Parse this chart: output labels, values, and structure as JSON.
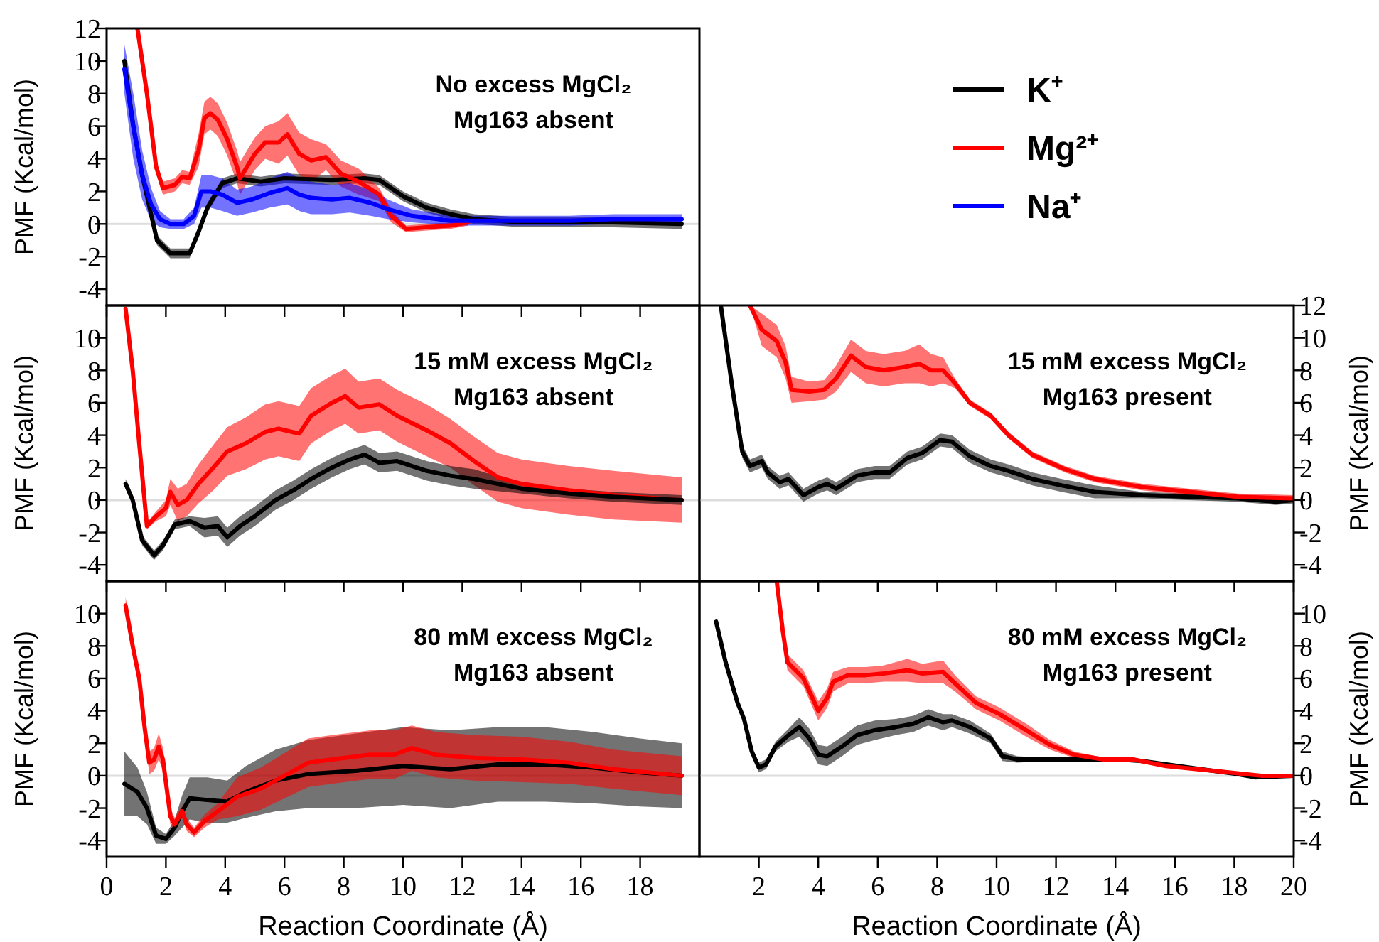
{
  "chart_data": [
    {
      "type": "line",
      "title": "No excess MgCl₂",
      "subtitle": "Mg163 absent",
      "ylabel": "PMF (Kcal/mol)",
      "xlim": [
        0,
        20
      ],
      "xticks": [
        0,
        2,
        4,
        6,
        8,
        10,
        12,
        14,
        16,
        18
      ],
      "ylim": [
        -5,
        12
      ],
      "yticks": [
        -4,
        -2,
        0,
        2,
        4,
        6,
        8,
        10,
        12
      ],
      "tick_labels": "y",
      "legend": "right",
      "ref_lines": [
        {
          "axis": "y",
          "value": 0,
          "color": "#dddddd"
        }
      ],
      "series": [
        {
          "name": "K⁺",
          "color": "#000000",
          "x": [
            0.6,
            0.9,
            1.2,
            1.7,
            2.15,
            2.8,
            3.1,
            3.4,
            3.9,
            4.4,
            5.2,
            6.0,
            7.6,
            8.7,
            9.2,
            10,
            10.8,
            11.6,
            12.4,
            14,
            15.6,
            17.1,
            19.4
          ],
          "values": [
            10,
            6,
            3,
            -1,
            -1.8,
            -1.8,
            -0.5,
            1,
            2.5,
            2.8,
            2.6,
            2.8,
            2.7,
            2.8,
            2.7,
            1.7,
            1.0,
            0.6,
            0.3,
            0.1,
            0.1,
            0.1,
            0
          ],
          "lower": [
            9.7,
            5.7,
            2.7,
            -1.3,
            -2.1,
            -2.1,
            -0.8,
            0.7,
            2.2,
            2.5,
            2.3,
            2.5,
            2.4,
            2.5,
            2.4,
            1.4,
            0.7,
            0.3,
            0,
            -0.2,
            -0.2,
            -0.2,
            -0.3
          ],
          "upper": [
            10.3,
            6.3,
            3.3,
            -0.7,
            -1.5,
            -1.5,
            -0.2,
            1.3,
            2.8,
            3.1,
            2.9,
            3.1,
            3.0,
            3.1,
            3.0,
            2.0,
            1.3,
            0.9,
            0.6,
            0.4,
            0.4,
            0.4,
            0.3
          ]
        },
        {
          "name": "Mg²⁺",
          "color": "#ff0000",
          "x": [
            1.04,
            1.36,
            1.67,
            1.9,
            2.3,
            2.55,
            2.8,
            3.1,
            3.3,
            3.5,
            3.75,
            4.07,
            4.4,
            4.5,
            5.0,
            5.35,
            5.8,
            6.1,
            6.5,
            6.9,
            7.4,
            7.9,
            8.5,
            9.2,
            9.6,
            10.1,
            10.8,
            11.6,
            12.2
          ],
          "values": [
            12,
            8,
            3.5,
            2.2,
            2.4,
            2.9,
            2.8,
            4.5,
            6.5,
            6.8,
            6.4,
            5.2,
            3.5,
            2.8,
            4.3,
            5.0,
            5.0,
            5.5,
            4.3,
            3.9,
            4.1,
            3.1,
            2.6,
            1.8,
            0.5,
            -0.3,
            -0.2,
            -0.1,
            0.1
          ],
          "lower": [
            11.6,
            7.6,
            3.1,
            1.8,
            2.0,
            2.5,
            2.4,
            3.5,
            5.5,
            5.8,
            5.4,
            4.2,
            2.5,
            1.8,
            3.3,
            4.0,
            3.7,
            4.2,
            3.0,
            2.6,
            3.3,
            2.3,
            1.8,
            1.4,
            0.1,
            -0.5,
            -0.4,
            -0.3,
            -0.1
          ],
          "upper": [
            12,
            8.4,
            3.9,
            2.6,
            2.8,
            3.3,
            3.2,
            5.5,
            7.5,
            7.8,
            7.4,
            6.2,
            4.5,
            3.8,
            5.3,
            6.0,
            6.3,
            6.8,
            5.6,
            5.2,
            4.9,
            3.9,
            3.4,
            2.2,
            0.9,
            -0.1,
            0,
            0.1,
            0.3
          ]
        },
        {
          "name": "Na⁺",
          "color": "#0000ff",
          "x": [
            0.6,
            0.9,
            1.2,
            1.5,
            1.8,
            2.15,
            2.6,
            2.95,
            3.2,
            3.5,
            3.9,
            4.4,
            4.9,
            5.5,
            6.1,
            6.5,
            6.9,
            7.6,
            8.2,
            8.9,
            9.5,
            10.3,
            11.6,
            13.2,
            15.6,
            17.1,
            19.4
          ],
          "values": [
            9.5,
            6,
            3,
            1.2,
            0.3,
            0,
            0,
            0.5,
            2.0,
            2.0,
            1.8,
            1.3,
            1.5,
            1.9,
            2.2,
            1.8,
            1.6,
            1.5,
            1.6,
            1.3,
            0.9,
            0.5,
            0.2,
            0.2,
            0.2,
            0.3,
            0.3
          ],
          "lower": [
            8,
            4,
            1.5,
            0.2,
            -0.2,
            -0.3,
            -0.3,
            0,
            1,
            1,
            0.8,
            0.5,
            0.7,
            1,
            1.2,
            0.8,
            0.6,
            0.6,
            0.7,
            0.5,
            0.3,
            0.1,
            -0.1,
            -0.1,
            -0.1,
            0,
            0
          ],
          "upper": [
            11,
            8,
            4.5,
            2.2,
            0.8,
            0.3,
            0.3,
            1,
            3,
            3,
            2.8,
            2.1,
            2.3,
            2.8,
            3.2,
            2.8,
            2.6,
            2.4,
            2.5,
            2.1,
            1.5,
            0.9,
            0.5,
            0.5,
            0.5,
            0.6,
            0.6
          ]
        }
      ]
    },
    {
      "type": "line",
      "title": "15 mM excess MgCl₂",
      "subtitle": "Mg163 absent",
      "ylabel": "PMF (Kcal/mol)",
      "xlim": [
        0,
        20
      ],
      "xticks": [
        0,
        2,
        4,
        6,
        8,
        10,
        12,
        14,
        16,
        18
      ],
      "ylim": [
        -5,
        12
      ],
      "yticks": [
        -4,
        -2,
        0,
        2,
        4,
        6,
        8,
        10
      ],
      "tick_labels": "y",
      "ref_lines": [
        {
          "axis": "y",
          "value": 0,
          "color": "#dddddd"
        }
      ],
      "series": [
        {
          "color": "#ff0000",
          "x": [
            0.64,
            0.88,
            1.1,
            1.36,
            1.67,
            2.0,
            2.15,
            2.4,
            2.7,
            3.1,
            3.6,
            4.07,
            4.7,
            5.35,
            5.8,
            6.5,
            6.9,
            7.6,
            8.05,
            8.5,
            9.2,
            9.8,
            10.8,
            11.6,
            12.4,
            13.2,
            14,
            15.6,
            17.1,
            19.4
          ],
          "values": [
            11.8,
            8,
            3.5,
            -1.6,
            -1.0,
            -0.5,
            0.5,
            -0.3,
            0,
            1.0,
            2.0,
            3.0,
            3.5,
            4.2,
            4.4,
            4.1,
            5.2,
            6.0,
            6.4,
            5.7,
            5.9,
            5.2,
            4.3,
            3.5,
            2.4,
            1.4,
            1.0,
            0.6,
            0.3,
            0
          ],
          "lower": [
            11.8,
            8,
            3.3,
            -1.8,
            -1.3,
            -1.0,
            -0.3,
            -1.3,
            -1,
            -0.2,
            0.6,
            1.5,
            1.9,
            2.5,
            2.7,
            2.4,
            3.5,
            4.3,
            4.7,
            4.1,
            4.3,
            3.6,
            2.7,
            2.0,
            0.9,
            -0.1,
            -0.5,
            -0.9,
            -1.2,
            -1.4
          ],
          "upper": [
            11.8,
            8,
            3.7,
            -1.4,
            -0.7,
            0,
            1.3,
            0.7,
            1,
            2.2,
            3.4,
            4.5,
            5.1,
            5.9,
            6.1,
            5.8,
            6.9,
            7.7,
            8.1,
            7.3,
            7.5,
            6.8,
            5.9,
            5.0,
            3.9,
            2.9,
            2.5,
            2.1,
            1.8,
            1.4
          ]
        },
        {
          "color": "#000000",
          "x": [
            0.64,
            0.88,
            1.2,
            1.6,
            1.9,
            2.3,
            2.8,
            3.3,
            3.75,
            4.07,
            4.5,
            5.0,
            5.7,
            6.3,
            6.9,
            7.6,
            8.2,
            8.7,
            9.2,
            9.8,
            10.8,
            11.6,
            12.4,
            14,
            15.6,
            17.1,
            19.4
          ],
          "values": [
            1.0,
            0,
            -2.5,
            -3.4,
            -2.8,
            -1.5,
            -1.3,
            -1.7,
            -1.6,
            -2.3,
            -1.6,
            -1.0,
            0,
            0.6,
            1.3,
            2.0,
            2.5,
            2.8,
            2.3,
            2.4,
            1.8,
            1.5,
            1.3,
            0.7,
            0.4,
            0.2,
            0
          ],
          "lower": [
            0.7,
            -0.3,
            -2.8,
            -3.7,
            -3.1,
            -1.8,
            -1.6,
            -2.3,
            -2.2,
            -2.9,
            -2.2,
            -1.6,
            -0.6,
            0,
            0.7,
            1.4,
            1.9,
            2.2,
            1.7,
            1.8,
            1.2,
            0.9,
            0.7,
            0.4,
            0.1,
            -0.1,
            -0.3
          ],
          "upper": [
            1.3,
            0.3,
            -2.2,
            -3.1,
            -2.5,
            -1.2,
            -1.0,
            -1.1,
            -1.0,
            -1.7,
            -1.0,
            -0.4,
            0.6,
            1.2,
            1.9,
            2.6,
            3.1,
            3.4,
            2.9,
            3.0,
            2.4,
            2.1,
            1.9,
            1.0,
            0.7,
            0.5,
            0.3
          ]
        }
      ]
    },
    {
      "type": "line",
      "title": "80 mM excess MgCl₂",
      "subtitle": "Mg163 absent",
      "xlabel": "Reaction Coordinate (Å)",
      "ylabel": "PMF (Kcal/mol)",
      "xlim": [
        0,
        20
      ],
      "xticks": [
        0,
        2,
        4,
        6,
        8,
        10,
        12,
        14,
        16,
        18
      ],
      "ylim": [
        -5,
        12
      ],
      "yticks": [
        -4,
        -2,
        0,
        2,
        4,
        6,
        8,
        10
      ],
      "ref_lines": [
        {
          "axis": "y",
          "value": 0,
          "color": "#dddddd"
        }
      ],
      "series": [
        {
          "color": "#000000",
          "x": [
            0.6,
            1.04,
            1.36,
            1.67,
            2.0,
            2.3,
            2.55,
            2.8,
            3.4,
            4.07,
            4.7,
            5.7,
            6.8,
            8.4,
            10,
            11.6,
            13.2,
            14.8,
            16.4,
            18,
            19.4
          ],
          "values": [
            -0.5,
            -1.0,
            -2.0,
            -3.7,
            -3.9,
            -3.2,
            -2.2,
            -1.4,
            -1.5,
            -1.6,
            -1.0,
            -0.3,
            0.1,
            0.3,
            0.6,
            0.4,
            0.7,
            0.7,
            0.5,
            0.2,
            0
          ],
          "lower": [
            -2.5,
            -2.5,
            -3.0,
            -4.2,
            -4.2,
            -3.7,
            -3.2,
            -2.7,
            -2.9,
            -2.9,
            -2.6,
            -2.2,
            -2.0,
            -2.0,
            -1.8,
            -2.0,
            -1.6,
            -1.6,
            -1.7,
            -1.9,
            -2
          ],
          "upper": [
            1.5,
            0.5,
            -1.0,
            -3.2,
            -3.6,
            -2.7,
            -1.2,
            -0.1,
            -0.1,
            -0.3,
            0.6,
            1.6,
            2.2,
            2.6,
            3.0,
            2.8,
            3.0,
            3.0,
            2.7,
            2.3,
            2
          ]
        },
        {
          "color": "#ff0000",
          "x": [
            0.64,
            0.88,
            1.1,
            1.28,
            1.44,
            1.6,
            1.76,
            1.9,
            2.15,
            2.3,
            2.55,
            2.7,
            2.95,
            3.3,
            3.75,
            4.4,
            5.2,
            6.0,
            6.8,
            7.6,
            8.9,
            9.7,
            10.3,
            11.1,
            12.4,
            14,
            15.6,
            17.1,
            19.4
          ],
          "values": [
            10.5,
            8,
            6,
            3,
            0.8,
            1.0,
            1.8,
            1.0,
            -2.5,
            -3.0,
            -2.2,
            -3.0,
            -3.5,
            -2.8,
            -2.2,
            -1.3,
            -0.8,
            0,
            0.8,
            1.0,
            1.3,
            1.3,
            1.7,
            1.3,
            1.1,
            1.0,
            0.8,
            0.4,
            0
          ],
          "lower": [
            10,
            7.5,
            5.5,
            2.5,
            0.1,
            0.3,
            1.0,
            0.3,
            -3.0,
            -3.4,
            -2.6,
            -3.4,
            -3.8,
            -3.2,
            -2.7,
            -2.5,
            -2.1,
            -1.4,
            -0.7,
            -0.5,
            -0.2,
            -0.2,
            0.3,
            -0.1,
            -0.3,
            -0.4,
            -0.5,
            -0.8,
            -1.2
          ],
          "upper": [
            11,
            8.5,
            6.5,
            3.5,
            1.5,
            1.7,
            2.6,
            1.7,
            -2.0,
            -2.6,
            -1.8,
            -2.6,
            -3.2,
            -2.4,
            -1.7,
            -0.1,
            0.5,
            1.4,
            2.3,
            2.5,
            2.8,
            2.8,
            3.1,
            2.7,
            2.5,
            2.4,
            2.1,
            1.6,
            1.2
          ]
        }
      ]
    },
    {
      "type": "line",
      "title": "15 mM excess MgCl₂",
      "subtitle": "Mg163 present",
      "y2label": "PMF (Kcal/mol)",
      "xlim": [
        0,
        20
      ],
      "xticks": [
        2,
        4,
        6,
        8,
        10,
        12,
        14,
        16,
        18,
        20
      ],
      "y2lim": [
        -5,
        12
      ],
      "y2ticks": [
        -4,
        -2,
        0,
        2,
        4,
        6,
        8,
        10,
        12
      ],
      "tick_labels": "y",
      "ref_lines": [
        {
          "axis": "y2",
          "value": 0,
          "color": "#dddddd"
        }
      ],
      "series": [
        {
          "axis": "y2",
          "color": "#000000",
          "x": [
            0.72,
            1.1,
            1.44,
            1.7,
            2.1,
            2.3,
            2.7,
            3.0,
            3.5,
            4.0,
            4.3,
            4.6,
            5.3,
            5.9,
            6.4,
            7.0,
            7.5,
            8.1,
            8.5,
            9.1,
            9.8,
            10.4,
            11.2,
            12.2,
            13.3,
            14.9,
            16.5,
            18.1,
            19.4,
            20
          ],
          "values": [
            12,
            7,
            3,
            2.1,
            2.4,
            1.7,
            1.1,
            1.3,
            0.3,
            0.8,
            1.0,
            0.7,
            1.5,
            1.7,
            1.7,
            2.6,
            2.9,
            3.7,
            3.6,
            2.7,
            2.1,
            1.8,
            1.3,
            0.9,
            0.5,
            0.3,
            0.2,
            0.1,
            -0.1,
            0
          ],
          "lower": [
            12,
            6.6,
            2.6,
            1.7,
            2.0,
            1.3,
            0.7,
            0.9,
            -0.1,
            0.4,
            0.6,
            0.3,
            1.1,
            1.3,
            1.3,
            2.2,
            2.5,
            3.3,
            3.2,
            2.3,
            1.7,
            1.4,
            0.9,
            0.5,
            0.1,
            0.1,
            0,
            -0.1,
            -0.3,
            -0.2
          ],
          "upper": [
            12,
            7.4,
            3.4,
            2.5,
            2.8,
            2.1,
            1.5,
            1.7,
            0.7,
            1.2,
            1.4,
            1.1,
            1.9,
            2.1,
            2.1,
            3.0,
            3.3,
            4.1,
            4.0,
            3.1,
            2.5,
            2.2,
            1.7,
            1.3,
            0.9,
            0.5,
            0.4,
            0.3,
            0.1,
            0.2
          ]
        },
        {
          "axis": "y2",
          "color": "#ff0000",
          "x": [
            1.7,
            2.1,
            2.6,
            2.9,
            3.1,
            3.7,
            4.2,
            4.6,
            5.1,
            5.6,
            6.2,
            6.9,
            7.4,
            7.8,
            8.2,
            8.6,
            9.1,
            9.8,
            10.4,
            11.2,
            12.3,
            13.3,
            14.9,
            16.5,
            18.1,
            20
          ],
          "values": [
            12,
            10.5,
            9.8,
            8.5,
            6.8,
            6.7,
            6.8,
            7.5,
            8.9,
            8.2,
            8.0,
            8.2,
            8.4,
            8.0,
            8.0,
            7.2,
            6.0,
            5.2,
            4.0,
            2.8,
            1.9,
            1.3,
            0.8,
            0.5,
            0.2,
            0.1
          ],
          "lower": [
            12,
            9.5,
            8.8,
            7.5,
            6.0,
            6.1,
            6.2,
            6.7,
            7.9,
            7.2,
            7.0,
            7.2,
            7.2,
            7.0,
            7.2,
            6.9,
            5.8,
            5.0,
            3.8,
            2.6,
            1.7,
            1.1,
            0.6,
            0.3,
            0,
            -0.1
          ],
          "upper": [
            12,
            11.5,
            10.8,
            9.5,
            7.6,
            7.3,
            7.4,
            8.3,
            9.9,
            9.2,
            9.0,
            9.2,
            9.6,
            9.0,
            8.8,
            7.5,
            6.2,
            5.4,
            4.2,
            3.0,
            2.1,
            1.5,
            1.0,
            0.7,
            0.4,
            0.3
          ]
        }
      ]
    },
    {
      "type": "line",
      "title": "80 mM excess MgCl₂",
      "subtitle": "Mg163 present",
      "xlabel": "Reaction Coordinate (Å)",
      "y2label": "PMF (Kcal/mol)",
      "xlim": [
        0,
        20
      ],
      "xticks": [
        2,
        4,
        6,
        8,
        10,
        12,
        14,
        16,
        18,
        20
      ],
      "y2lim": [
        -5,
        12
      ],
      "y2ticks": [
        -4,
        -2,
        0,
        2,
        4,
        6,
        8,
        10
      ],
      "ref_lines": [
        {
          "axis": "y2",
          "value": 0,
          "color": "#dddddd"
        }
      ],
      "series": [
        {
          "axis": "y2",
          "color": "#000000",
          "x": [
            0.56,
            0.88,
            1.28,
            1.5,
            1.76,
            2.0,
            2.24,
            2.56,
            3.0,
            3.36,
            3.7,
            4.0,
            4.3,
            4.8,
            5.3,
            5.9,
            6.6,
            7.2,
            7.7,
            8.2,
            8.5,
            9.1,
            9.8,
            10.2,
            10.7,
            11.7,
            13.3,
            14.1,
            14.9,
            16.5,
            18.1,
            18.7,
            20
          ],
          "values": [
            9.5,
            7.0,
            4.5,
            3.5,
            1.5,
            0.5,
            0.7,
            1.8,
            2.5,
            3.0,
            2.3,
            1.3,
            1.2,
            1.8,
            2.5,
            2.8,
            3.0,
            3.2,
            3.6,
            3.3,
            3.4,
            3.0,
            2.3,
            1.2,
            1.0,
            1.0,
            1.0,
            1.0,
            0.9,
            0.5,
            0.1,
            -0.1,
            0
          ],
          "lower": [
            9.3,
            6.8,
            4.3,
            3.3,
            1.3,
            0.2,
            0.4,
            1.5,
            2.1,
            2.4,
            1.7,
            0.7,
            0.6,
            1.2,
            1.9,
            2.2,
            2.5,
            2.7,
            3.1,
            2.8,
            3.0,
            2.6,
            2.0,
            0.9,
            0.8,
            0.9,
            0.9,
            0.9,
            0.8,
            0.4,
            0,
            -0.2,
            -0.1
          ],
          "upper": [
            9.7,
            7.2,
            4.7,
            3.7,
            1.7,
            0.8,
            1.0,
            2.1,
            2.9,
            3.6,
            2.9,
            1.9,
            1.8,
            2.4,
            3.1,
            3.4,
            3.5,
            3.7,
            4.1,
            3.8,
            3.8,
            3.4,
            2.6,
            1.5,
            1.2,
            1.1,
            1.1,
            1.1,
            1.0,
            0.6,
            0.2,
            0,
            0.1
          ]
        },
        {
          "axis": "y2",
          "color": "#ff0000",
          "x": [
            2.6,
            2.8,
            2.96,
            3.5,
            4.0,
            4.3,
            4.5,
            5.0,
            5.6,
            6.2,
            7.0,
            7.5,
            8.2,
            8.6,
            9.3,
            10.1,
            11.0,
            11.8,
            12.6,
            13.6,
            14.6,
            15.7,
            17.3,
            18.9,
            20
          ],
          "values": [
            12,
            9,
            7.0,
            6.0,
            4.0,
            4.8,
            5.8,
            6.2,
            6.2,
            6.3,
            6.5,
            6.3,
            6.4,
            5.7,
            4.5,
            3.8,
            2.8,
            1.9,
            1.3,
            1.0,
            1.0,
            0.6,
            0.3,
            0,
            0
          ],
          "lower": [
            12,
            8.5,
            6.5,
            5.5,
            3.4,
            4.2,
            5.2,
            5.7,
            5.7,
            5.8,
            5.8,
            5.7,
            5.7,
            5.2,
            4.1,
            3.4,
            2.4,
            1.6,
            1.1,
            0.9,
            0.9,
            0.5,
            0.2,
            -0.1,
            -0.1
          ],
          "upper": [
            12,
            9.5,
            7.5,
            6.5,
            4.6,
            5.4,
            6.4,
            6.7,
            6.7,
            6.8,
            7.2,
            6.9,
            7.1,
            6.2,
            4.9,
            4.2,
            3.2,
            2.2,
            1.5,
            1.1,
            1.1,
            0.7,
            0.4,
            0.1,
            0.1
          ]
        }
      ]
    }
  ]
}
